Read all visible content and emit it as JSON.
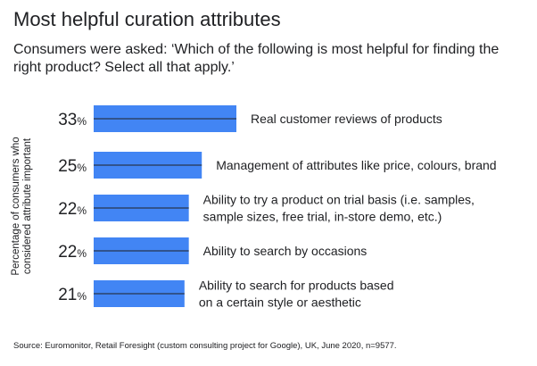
{
  "chart_data": {
    "type": "bar",
    "orientation": "horizontal",
    "title": "Most helpful curation attributes",
    "subtitle": "Consumers were asked: ‘Which of the following is most helpful for finding the right product? Select all that apply.’",
    "ylabel": "Percentage of consumers who considered attribute important",
    "xlim": [
      0,
      33
    ],
    "value_suffix": "%",
    "bar_color": "#4285f4",
    "categories": [
      [
        "Real customer reviews of products"
      ],
      [
        "Management of attributes like price, colours, brand"
      ],
      [
        "Ability to try a product on trial basis (i.e. samples,",
        "sample sizes, free trial, in-store demo, etc.)"
      ],
      [
        "Ability to search by occasions"
      ],
      [
        "Ability to search for products based",
        "on a certain style or aesthetic"
      ]
    ],
    "values": [
      33,
      25,
      22,
      22,
      21
    ],
    "source": "Source: Euromonitor, Retail Foresight (custom consulting project for Google), UK, June 2020, n=9577."
  }
}
